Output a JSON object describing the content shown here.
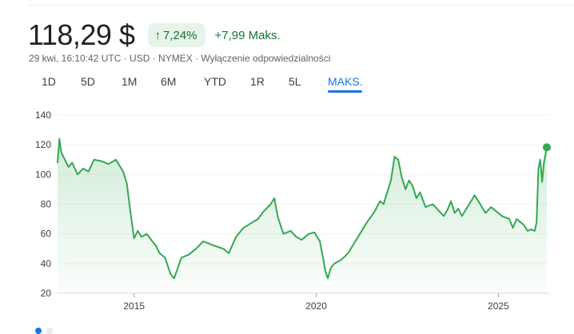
{
  "quote": {
    "price": "118,29 $",
    "change_arrow": "↑",
    "change_percent": "7,24%",
    "change_abs": "+7,99 Maks.",
    "meta": "29 kwi, 16:10:42 UTC · USD · NYMEX · Wyłączenie odpowiedzialności"
  },
  "tabs": [
    {
      "label": "1D"
    },
    {
      "label": "5D"
    },
    {
      "label": "1M"
    },
    {
      "label": "6M"
    },
    {
      "label": "YTD"
    },
    {
      "label": "1R"
    },
    {
      "label": "5L"
    },
    {
      "label": "MAKS.",
      "active": true
    }
  ],
  "colors": {
    "line": "#34a853",
    "positive": "#137333",
    "badge_bg": "#e6f4ea",
    "active_tab": "#1a73e8"
  },
  "chart_data": {
    "type": "area",
    "yticks": [
      "140",
      "120",
      "100",
      "80",
      "60",
      "40",
      "20"
    ],
    "xticks": [
      "2015",
      "2020",
      "2025"
    ],
    "ylim": [
      20,
      140
    ],
    "xlim": [
      2012.9,
      2026.33
    ],
    "grid": true,
    "x": [
      2012.9,
      2012.95,
      2013.0,
      2013.1,
      2013.2,
      2013.3,
      2013.45,
      2013.6,
      2013.75,
      2013.9,
      2014.1,
      2014.3,
      2014.5,
      2014.6,
      2014.7,
      2014.8,
      2014.9,
      2015.0,
      2015.1,
      2015.2,
      2015.35,
      2015.5,
      2015.6,
      2015.7,
      2015.85,
      2016.0,
      2016.1,
      2016.3,
      2016.5,
      2016.7,
      2016.9,
      2017.0,
      2017.2,
      2017.45,
      2017.6,
      2017.8,
      2018.0,
      2018.2,
      2018.4,
      2018.55,
      2018.75,
      2018.85,
      2018.95,
      2019.1,
      2019.3,
      2019.45,
      2019.6,
      2019.8,
      2019.95,
      2020.1,
      2020.2,
      2020.25,
      2020.32,
      2020.4,
      2020.5,
      2020.65,
      2020.8,
      2020.9,
      2021.0,
      2021.2,
      2021.4,
      2021.6,
      2021.75,
      2021.85,
      2021.95,
      2022.05,
      2022.15,
      2022.25,
      2022.35,
      2022.45,
      2022.55,
      2022.65,
      2022.75,
      2022.85,
      2023.0,
      2023.2,
      2023.35,
      2023.5,
      2023.6,
      2023.7,
      2023.8,
      2023.9,
      2024.0,
      2024.2,
      2024.35,
      2024.5,
      2024.65,
      2024.8,
      2024.95,
      2025.1,
      2025.3,
      2025.4,
      2025.5,
      2025.6,
      2025.7,
      2025.8,
      2025.9,
      2026.0,
      2026.05,
      2026.1,
      2026.15,
      2026.2,
      2026.25,
      2026.33
    ],
    "values": [
      108,
      124,
      115,
      110,
      105,
      108,
      100,
      104,
      102,
      110,
      109,
      107,
      110,
      106,
      102,
      94,
      75,
      57,
      62,
      58,
      60,
      55,
      52,
      47,
      44,
      33,
      30,
      44,
      46,
      50,
      55,
      54,
      52,
      50,
      47,
      58,
      64,
      67,
      70,
      75,
      80,
      84,
      71,
      60,
      62,
      58,
      56,
      60,
      61,
      55,
      42,
      35,
      30,
      37,
      40,
      42,
      45,
      48,
      52,
      60,
      68,
      75,
      82,
      80,
      88,
      96,
      112,
      110,
      98,
      90,
      96,
      92,
      84,
      88,
      78,
      80,
      76,
      72,
      76,
      82,
      74,
      77,
      72,
      80,
      86,
      80,
      74,
      78,
      75,
      72,
      70,
      64,
      70,
      68,
      66,
      62,
      63,
      62,
      68,
      104,
      110,
      95,
      108,
      118.29
    ]
  }
}
